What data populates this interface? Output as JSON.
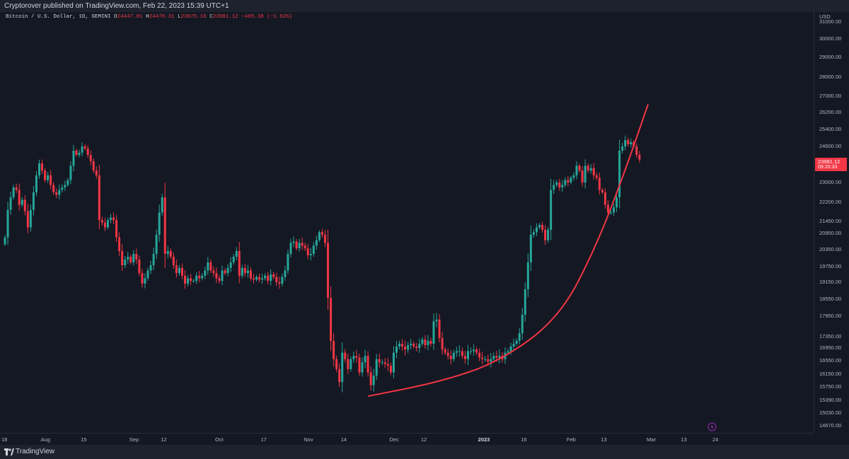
{
  "header": {
    "publisher": "Cryptorover published on TradingView.com, Feb 22, 2023 15:39 UTC+1"
  },
  "legend": {
    "symbol": "Bitcoin / U.S. Dollar, 1D, GEMINI",
    "o_label": "O",
    "o_value": "24447.81",
    "h_label": "H",
    "h_value": "24478.31",
    "l_label": "L",
    "l_value": "23875.18",
    "c_label": "C",
    "c_value": "23981.12",
    "change": "−469.38 (−1.92%)"
  },
  "price_axis": {
    "currency": "USD",
    "current_price": "23981.12",
    "countdown": "09:20:33"
  },
  "footer": {
    "brand": "TradingView"
  },
  "colors": {
    "up": "#26a69a",
    "down": "#f23645",
    "curve": "#f23645",
    "background": "#141823"
  },
  "chart_data": {
    "type": "candlestick",
    "symbol": "BTCUSD",
    "interval": "1D",
    "y_ticks": [
      "31000.00",
      "30000.00",
      "29000.00",
      "28000.00",
      "27000.00",
      "26200.00",
      "25400.00",
      "24600.00",
      "23800.00",
      "23000.00",
      "22200.00",
      "21450.00",
      "20950.00",
      "20350.00",
      "19750.00",
      "19150.00",
      "18550.00",
      "17950.00",
      "17350.00",
      "16950.00",
      "16550.00",
      "16150.00",
      "15750.00",
      "15390.00",
      "15030.00",
      "14670.00"
    ],
    "x_ticks": [
      {
        "label": "18",
        "date": "2022-07-18"
      },
      {
        "label": "Aug",
        "date": "2022-08-01"
      },
      {
        "label": "15",
        "date": "2022-08-15"
      },
      {
        "label": "Sep",
        "date": "2022-09-01"
      },
      {
        "label": "12",
        "date": "2022-09-12"
      },
      {
        "label": "Oct",
        "date": "2022-10-01"
      },
      {
        "label": "17",
        "date": "2022-10-17"
      },
      {
        "label": "Nov",
        "date": "2022-11-01"
      },
      {
        "label": "14",
        "date": "2022-11-14"
      },
      {
        "label": "Dec",
        "date": "2022-12-01"
      },
      {
        "label": "12",
        "date": "2022-12-12"
      },
      {
        "label": "2023",
        "date": "2023-01-01"
      },
      {
        "label": "16",
        "date": "2023-01-16"
      },
      {
        "label": "Feb",
        "date": "2023-02-01"
      },
      {
        "label": "13",
        "date": "2023-02-13"
      },
      {
        "label": "Mar",
        "date": "2023-03-01"
      },
      {
        "label": "13",
        "date": "2023-03-13"
      },
      {
        "label": "24",
        "date": "2023-03-24"
      }
    ],
    "start_date": "2022-07-18",
    "closes": [
      20800,
      21900,
      22400,
      22800,
      22700,
      22100,
      22300,
      21850,
      21200,
      21900,
      22600,
      23300,
      23800,
      23500,
      23100,
      23300,
      22900,
      22600,
      22500,
      22700,
      22800,
      22900,
      23100,
      23700,
      24400,
      24200,
      24300,
      24600,
      24500,
      24200,
      23900,
      23500,
      23300,
      21500,
      21400,
      21200,
      21500,
      21600,
      21500,
      20800,
      20300,
      19800,
      20000,
      20100,
      19900,
      20200,
      20000,
      19500,
      19100,
      19300,
      19600,
      19800,
      20200,
      20900,
      21800,
      22400,
      20200,
      20300,
      20100,
      19800,
      19500,
      19700,
      19400,
      19100,
      19300,
      19200,
      19200,
      19400,
      19300,
      19400,
      19600,
      19900,
      19600,
      19500,
      19300,
      19200,
      19600,
      19500,
      19700,
      19900,
      20100,
      20300,
      19400,
      19700,
      19500,
      19600,
      19300,
      19250,
      19350,
      19250,
      19300,
      19400,
      19200,
      19450,
      19350,
      19150,
      19100,
      19350,
      19600,
      20200,
      20600,
      20650,
      20400,
      20600,
      20500,
      20400,
      20150,
      20200,
      20500,
      20700,
      21000,
      20900,
      20600,
      18600,
      17200,
      16600,
      16300,
      15900,
      16800,
      16600,
      16300,
      16600,
      16700,
      16650,
      16200,
      16500,
      16700,
      16200,
      15800,
      16100,
      16600,
      16500,
      16500,
      16450,
      16400,
      16200,
      16800,
      17000,
      17100,
      17000,
      16900,
      17050,
      17100,
      17000,
      16950,
      17100,
      17250,
      17050,
      17200,
      17100,
      17800,
      17850,
      17300,
      16900,
      16800,
      16700,
      16600,
      16800,
      16850,
      16850,
      16700,
      16600,
      16850,
      16850,
      16900,
      16800,
      16650,
      16600,
      16600,
      16520,
      16600,
      16700,
      16650,
      16700,
      16600,
      16800,
      16850,
      17000,
      17100,
      17200,
      17450,
      18000,
      18900,
      19900,
      20900,
      21000,
      21200,
      21300,
      21100,
      20700,
      21100,
      22700,
      22900,
      23000,
      22800,
      22900,
      23100,
      23000,
      23200,
      23300,
      23700,
      23500,
      23000,
      23700,
      23500,
      23600,
      23300,
      23200,
      22700,
      22600,
      22100,
      21800,
      21800,
      22000,
      22400,
      24400,
      24600,
      24900,
      24700,
      24800,
      24600,
      24200,
      23981.12
    ],
    "curve": [
      {
        "date": "2022-11-22",
        "price": 15500
      },
      {
        "date": "2022-12-17",
        "price": 15900
      },
      {
        "date": "2023-01-07",
        "price": 16520
      },
      {
        "date": "2023-01-28",
        "price": 17900
      },
      {
        "date": "2023-02-10",
        "price": 20500
      },
      {
        "date": "2023-02-20",
        "price": 23500
      },
      {
        "date": "2023-02-28",
        "price": 26600
      }
    ]
  }
}
